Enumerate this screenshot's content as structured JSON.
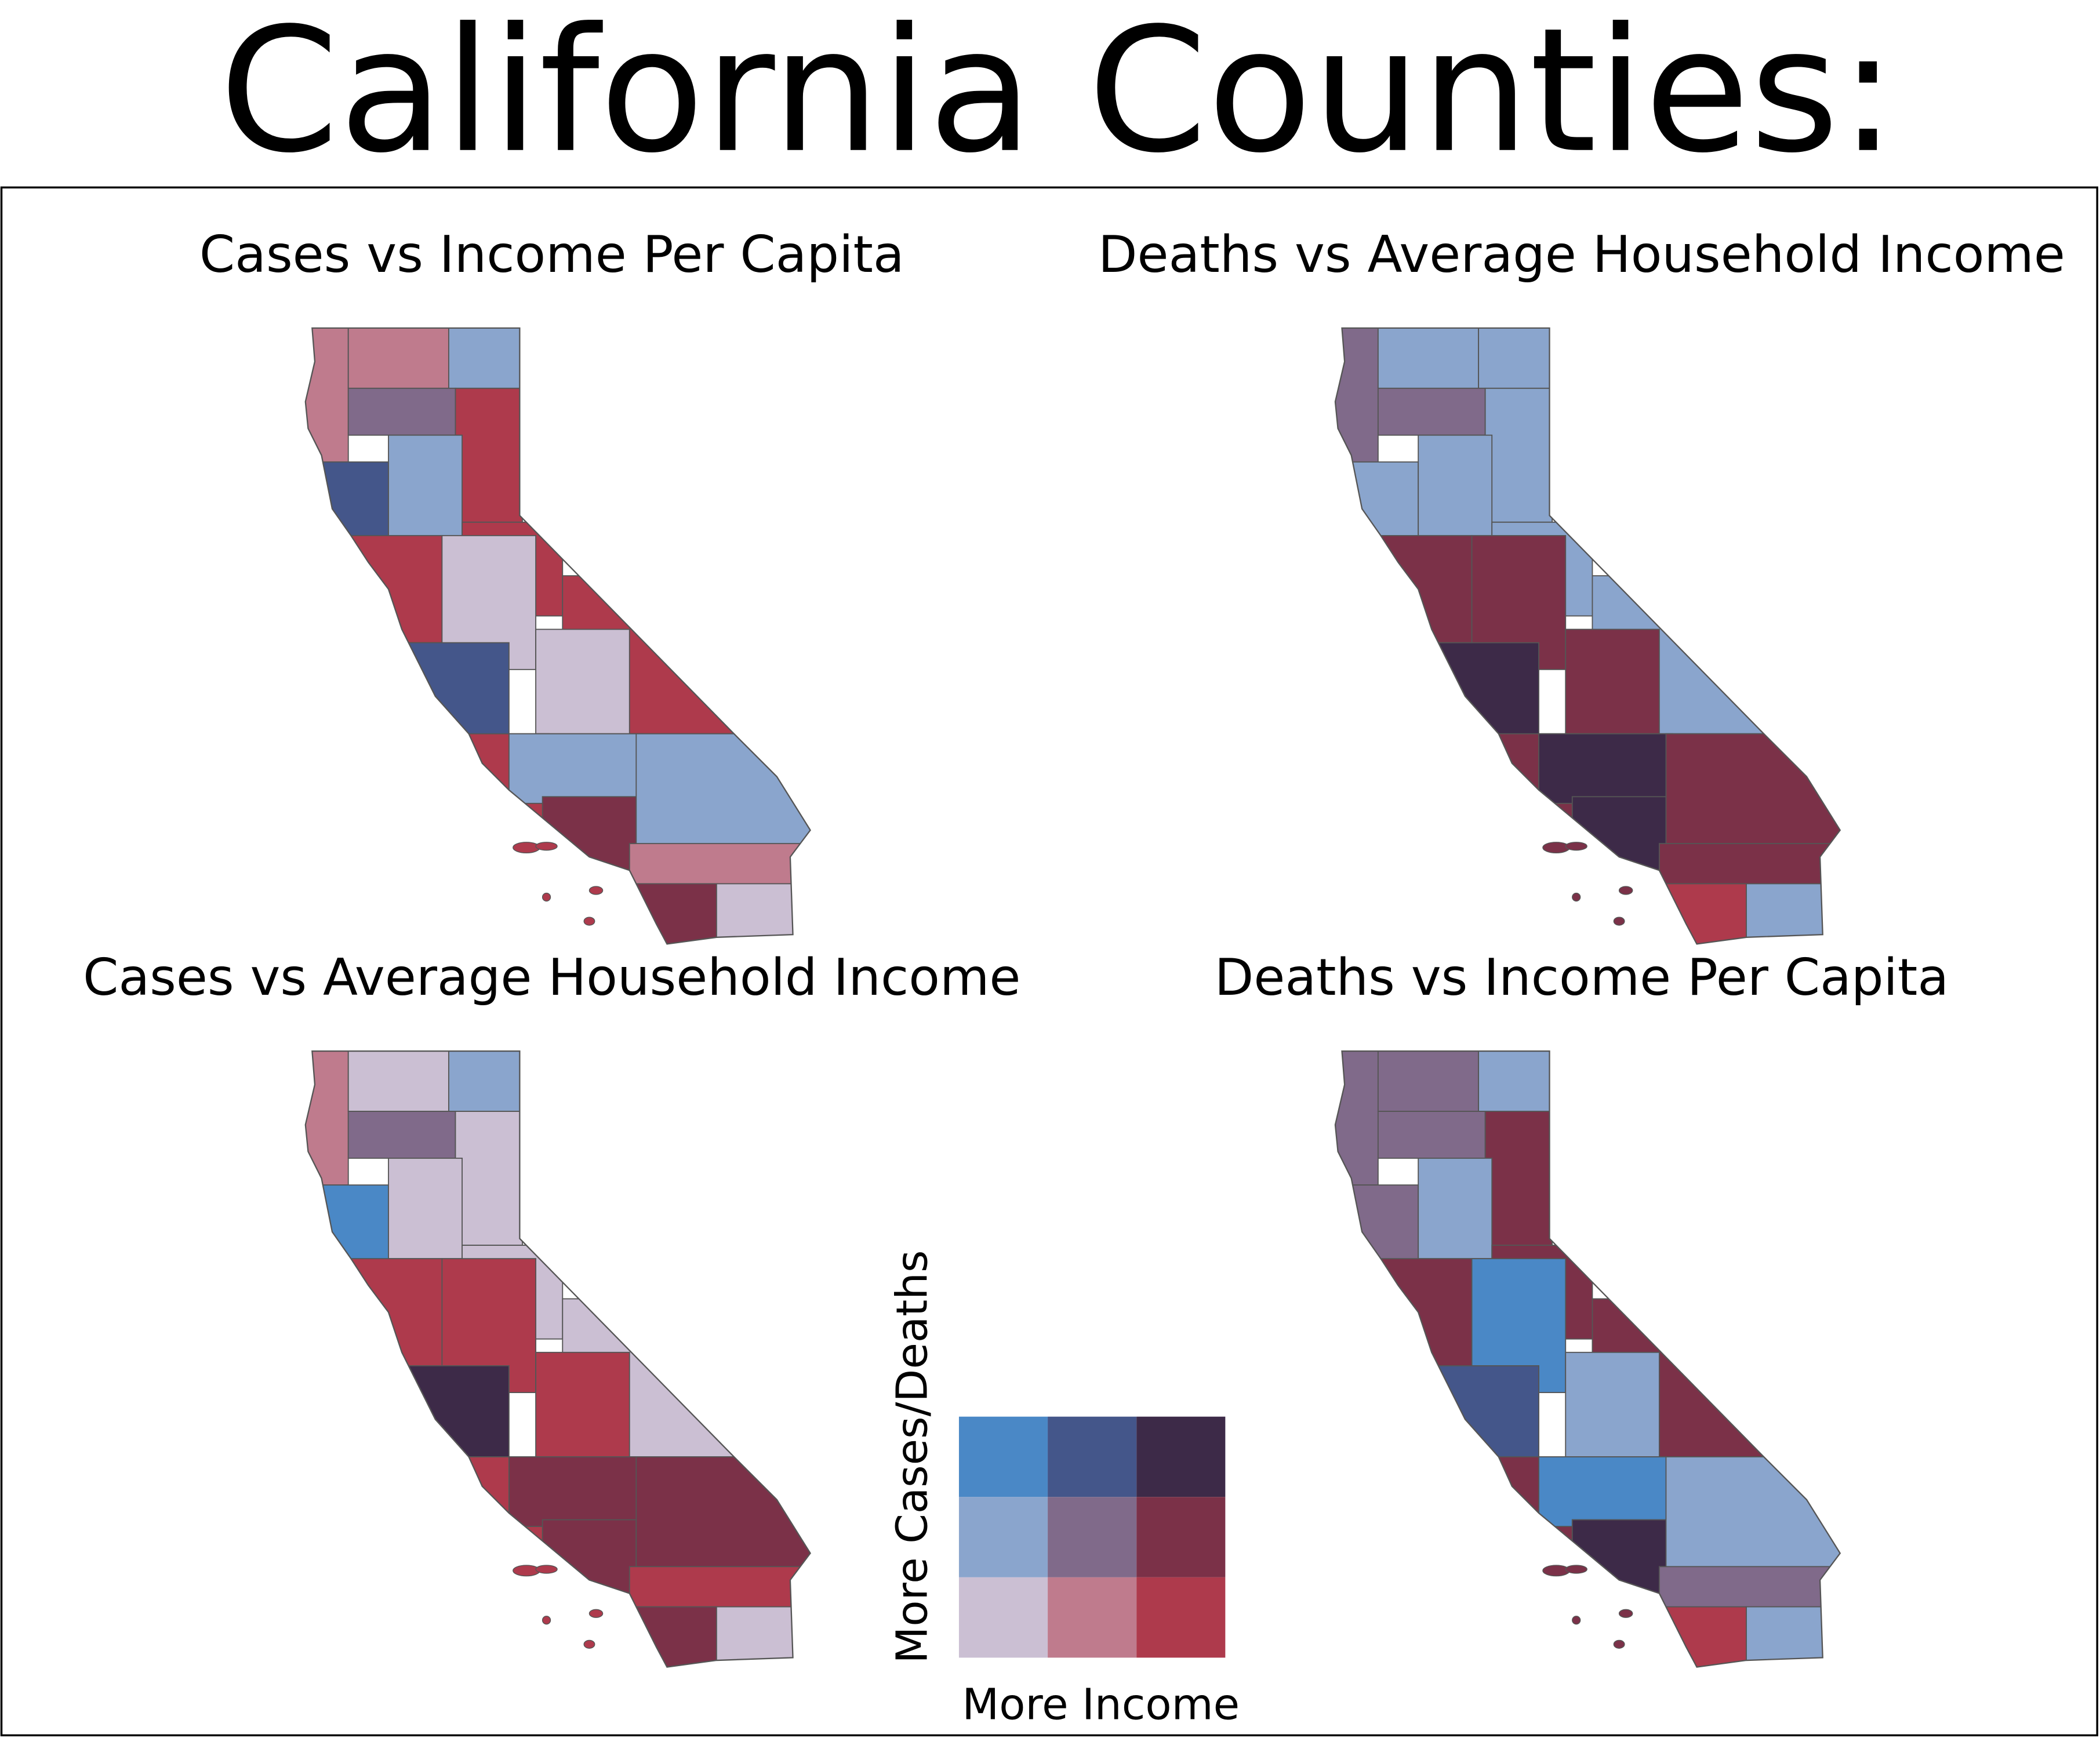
{
  "title": "California Counties:",
  "maps": [
    {
      "title": "Cases vs Income Per Capita"
    },
    {
      "title": "Deaths vs Average Household Income"
    },
    {
      "title": "Cases vs Average Household Income"
    },
    {
      "title": "Deaths vs Income Per Capita"
    }
  ],
  "legend": {
    "x_label": "More Income",
    "y_label": "More Cases/Deaths",
    "colors": [
      [
        "#4a88c6",
        "#44568a",
        "#3d2a48"
      ],
      [
        "#8aa5cd",
        "#806a8a",
        "#7b3148"
      ],
      [
        "#cbbfd3",
        "#bf7b8d",
        "#ae3a4c"
      ]
    ]
  }
}
